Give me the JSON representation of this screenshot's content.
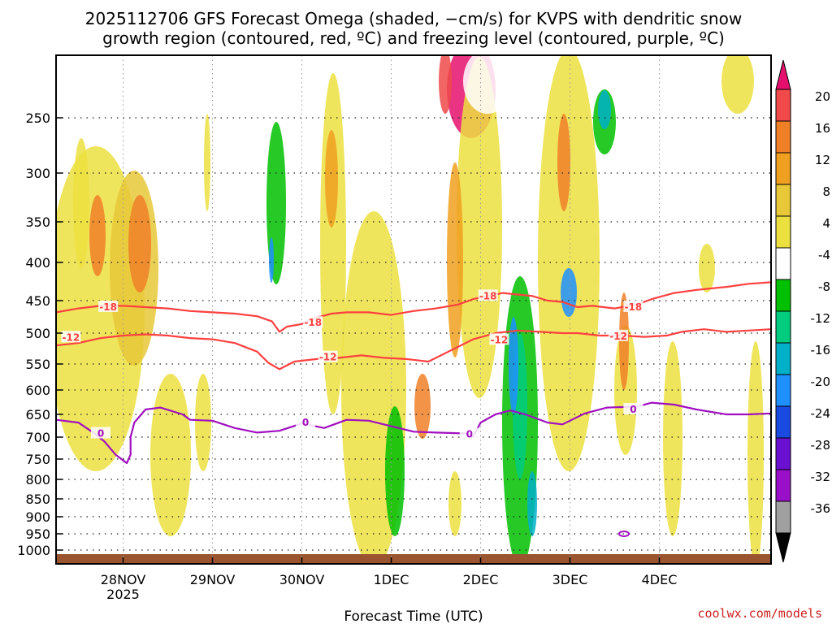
{
  "chart_data": {
    "type": "heatmap",
    "title_line1": "2025112706 GFS Forecast Omega (shaded, −cm/s) for KVPS with dendritic snow",
    "title_line2": "growth region (contoured, red, ºC) and freezing level (contoured, purple, ºC)",
    "xlabel": "Forecast Time (UTC)",
    "credit": "coolwx.com/models",
    "y_ticks": [
      {
        "p": 250,
        "label": "250"
      },
      {
        "p": 300,
        "label": "300"
      },
      {
        "p": 350,
        "label": "350"
      },
      {
        "p": 400,
        "label": "400"
      },
      {
        "p": 450,
        "label": "450"
      },
      {
        "p": 500,
        "label": "500"
      },
      {
        "p": 550,
        "label": "550"
      },
      {
        "p": 600,
        "label": "600"
      },
      {
        "p": 650,
        "label": "650"
      },
      {
        "p": 700,
        "label": "700"
      },
      {
        "p": 750,
        "label": "750"
      },
      {
        "p": 800,
        "label": "800"
      },
      {
        "p": 850,
        "label": "850"
      },
      {
        "p": 900,
        "label": "900"
      },
      {
        "p": 950,
        "label": "950"
      },
      {
        "p": 1000,
        "label": "1000"
      }
    ],
    "x_range_hours": [
      0,
      192
    ],
    "x_ticks": [
      {
        "hour": 18,
        "label": "28NOV",
        "sub": "2025"
      },
      {
        "hour": 42,
        "label": "29NOV",
        "sub": ""
      },
      {
        "hour": 66,
        "label": "30NOV",
        "sub": ""
      },
      {
        "hour": 90,
        "label": "1DEC",
        "sub": ""
      },
      {
        "hour": 114,
        "label": "2DEC",
        "sub": ""
      },
      {
        "hour": 138,
        "label": "3DEC",
        "sub": ""
      },
      {
        "hour": 162,
        "label": "4DEC",
        "sub": ""
      }
    ],
    "colorbar": {
      "labels": [
        "20",
        "16",
        "12",
        "8",
        "4",
        "-4",
        "-8",
        "-12",
        "-16",
        "-20",
        "-24",
        "-28",
        "-32",
        "-36"
      ],
      "colors": [
        "#e5106e",
        "#f04a4a",
        "#f08028",
        "#f0a020",
        "#e8c838",
        "#ece040",
        "#ffffff",
        "#00c000",
        "#00cc80",
        "#00b0c8",
        "#1e90ff",
        "#1a4ae0",
        "#6a10d0",
        "#9a10c8",
        "#a0a0a0",
        "#000000"
      ]
    },
    "series": [
      {
        "name": "-18",
        "color": "#ff4040",
        "label": "-18",
        "points": [
          [
            0,
            468
          ],
          [
            6,
            462
          ],
          [
            12,
            458
          ],
          [
            18,
            458
          ],
          [
            24,
            460
          ],
          [
            30,
            462
          ],
          [
            36,
            466
          ],
          [
            42,
            468
          ],
          [
            48,
            470
          ],
          [
            54,
            474
          ],
          [
            58,
            482
          ],
          [
            60,
            498
          ],
          [
            62,
            490
          ],
          [
            66,
            486
          ],
          [
            70,
            476
          ],
          [
            74,
            470
          ],
          [
            78,
            468
          ],
          [
            84,
            468
          ],
          [
            90,
            472
          ],
          [
            96,
            466
          ],
          [
            102,
            462
          ],
          [
            108,
            456
          ],
          [
            112,
            448
          ],
          [
            116,
            444
          ],
          [
            120,
            440
          ],
          [
            124,
            442
          ],
          [
            128,
            444
          ],
          [
            132,
            450
          ],
          [
            136,
            452
          ],
          [
            140,
            460
          ],
          [
            144,
            458
          ],
          [
            150,
            462
          ],
          [
            156,
            456
          ],
          [
            160,
            448
          ],
          [
            166,
            440
          ],
          [
            172,
            436
          ],
          [
            180,
            432
          ],
          [
            186,
            428
          ],
          [
            192,
            426
          ]
        ],
        "labels_at": [
          [
            14,
            460
          ],
          [
            69,
            484
          ],
          [
            116,
            444
          ],
          [
            155,
            460
          ]
        ]
      },
      {
        "name": "-12",
        "color": "#ff4040",
        "label": "-12",
        "points": [
          [
            0,
            520
          ],
          [
            6,
            516
          ],
          [
            12,
            508
          ],
          [
            18,
            504
          ],
          [
            24,
            502
          ],
          [
            30,
            504
          ],
          [
            36,
            508
          ],
          [
            42,
            510
          ],
          [
            48,
            516
          ],
          [
            54,
            530
          ],
          [
            57,
            548
          ],
          [
            60,
            560
          ],
          [
            64,
            546
          ],
          [
            70,
            542
          ],
          [
            76,
            540
          ],
          [
            82,
            536
          ],
          [
            88,
            540
          ],
          [
            94,
            542
          ],
          [
            100,
            546
          ],
          [
            106,
            528
          ],
          [
            112,
            510
          ],
          [
            118,
            500
          ],
          [
            124,
            496
          ],
          [
            130,
            498
          ],
          [
            136,
            500
          ],
          [
            140,
            500
          ],
          [
            146,
            504
          ],
          [
            152,
            504
          ],
          [
            158,
            506
          ],
          [
            164,
            504
          ],
          [
            168,
            498
          ],
          [
            174,
            494
          ],
          [
            180,
            498
          ],
          [
            186,
            496
          ],
          [
            192,
            494
          ]
        ],
        "labels_at": [
          [
            4,
            507
          ],
          [
            73,
            539
          ],
          [
            119,
            511
          ],
          [
            151,
            505
          ]
        ]
      },
      {
        "name": "0",
        "color": "#a010c0",
        "label": "0",
        "points": [
          [
            0,
            662
          ],
          [
            6,
            668
          ],
          [
            10,
            690
          ],
          [
            13,
            710
          ],
          [
            16,
            740
          ],
          [
            19,
            760
          ],
          [
            20,
            740
          ],
          [
            20,
            700
          ],
          [
            21,
            668
          ],
          [
            24,
            640
          ],
          [
            28,
            636
          ],
          [
            34,
            650
          ],
          [
            36,
            662
          ],
          [
            42,
            664
          ],
          [
            48,
            680
          ],
          [
            54,
            690
          ],
          [
            60,
            686
          ],
          [
            66,
            670
          ],
          [
            72,
            680
          ],
          [
            78,
            662
          ],
          [
            84,
            664
          ],
          [
            90,
            676
          ],
          [
            96,
            688
          ],
          [
            102,
            690
          ],
          [
            110,
            692
          ],
          [
            112,
            700
          ],
          [
            114,
            668
          ],
          [
            118,
            650
          ],
          [
            122,
            642
          ],
          [
            126,
            650
          ],
          [
            132,
            668
          ],
          [
            136,
            672
          ],
          [
            142,
            648
          ],
          [
            148,
            636
          ],
          [
            156,
            634
          ],
          [
            160,
            626
          ],
          [
            166,
            630
          ],
          [
            172,
            640
          ],
          [
            180,
            650
          ],
          [
            186,
            650
          ],
          [
            192,
            648
          ]
        ],
        "labels_at": [
          [
            12,
            692
          ],
          [
            67,
            668
          ],
          [
            111,
            694
          ],
          [
            155,
            640
          ]
        ]
      }
    ]
  }
}
